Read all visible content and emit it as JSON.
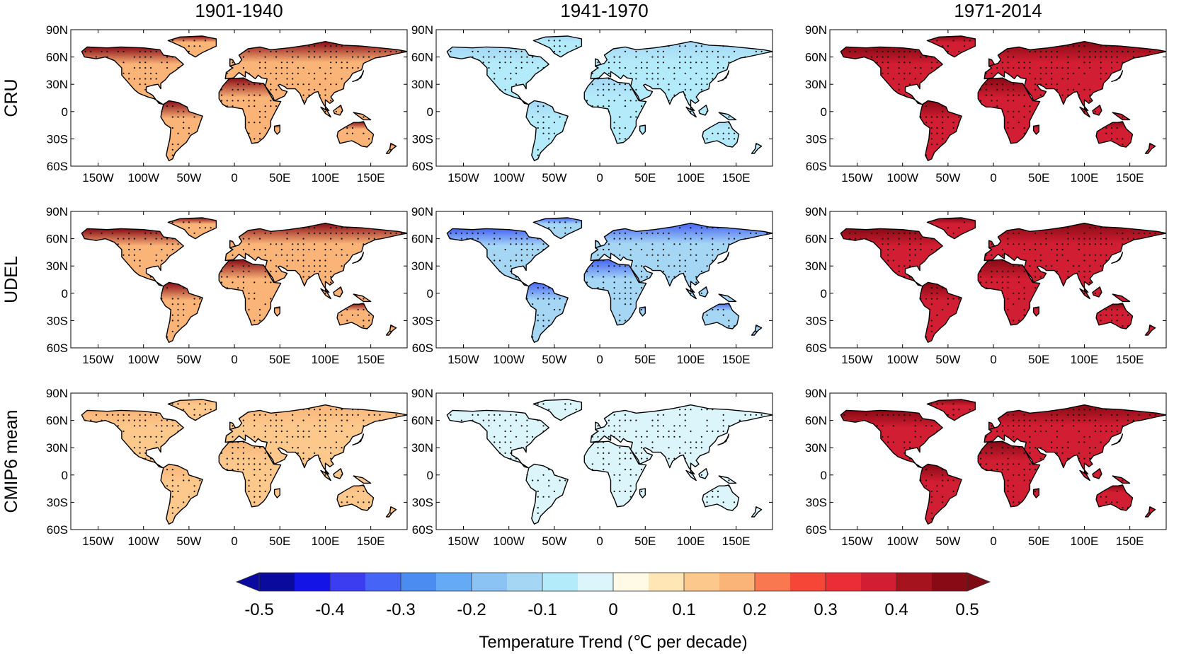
{
  "figure": {
    "column_titles": [
      "1901-1940",
      "1941-1970",
      "1971-2014"
    ],
    "row_labels": [
      "CRU",
      "UDEL",
      "CMIP6 mean"
    ]
  },
  "axes": {
    "lat_ticks": [
      "90N",
      "60N",
      "30N",
      "0",
      "30S",
      "60S"
    ],
    "lat_values": [
      90,
      60,
      30,
      0,
      -30,
      -60
    ],
    "lon_ticks": [
      "150W",
      "100W",
      "50W",
      "0",
      "50E",
      "100E",
      "150E"
    ],
    "lon_values": [
      -150,
      -100,
      -50,
      0,
      50,
      100,
      150
    ],
    "lon_range": [
      -180,
      190
    ],
    "lat_range": [
      -60,
      90
    ]
  },
  "colorbar": {
    "label": "Temperature Trend (℃ per decade)",
    "tick_labels": [
      "-0.5",
      "-0.4",
      "-0.3",
      "-0.2",
      "-0.1",
      "0",
      "0.1",
      "0.2",
      "0.3",
      "0.4",
      "0.5"
    ],
    "range": [
      -0.5,
      0.5
    ],
    "step": 0.05,
    "extend": "both",
    "colors": [
      "#0a0a9c",
      "#1414e6",
      "#3c3cf0",
      "#4664f5",
      "#4b8cf0",
      "#64aaf5",
      "#8cc3f5",
      "#a5d7f5",
      "#b4ebfa",
      "#dcf5fa",
      "#fffae6",
      "#ffe6b4",
      "#fcc88c",
      "#fab478",
      "#fa7850",
      "#f54637",
      "#eb2d37",
      "#d21e32",
      "#a5141e",
      "#870a14"
    ],
    "under_color": "#0a0aa0",
    "over_color": "#7d0a14"
  },
  "chart_data": {
    "type": "heatmap",
    "description_of_panels": "3x3 grid of land-surface temperature trend maps; rows = dataset, columns = period",
    "panels": [
      {
        "row": "CRU",
        "period": "1901-1940",
        "dominant_trend": 0.15,
        "arctic_trend": 0.45,
        "stippled": true
      },
      {
        "row": "CRU",
        "period": "1941-1970",
        "dominant_trend": -0.1,
        "arctic_trend": -0.15,
        "stippled": true
      },
      {
        "row": "CRU",
        "period": "1971-2014",
        "dominant_trend": 0.35,
        "arctic_trend": 0.45,
        "stippled": true
      },
      {
        "row": "UDEL",
        "period": "1901-1940",
        "dominant_trend": 0.15,
        "arctic_trend": 0.45,
        "stippled": true
      },
      {
        "row": "UDEL",
        "period": "1941-1970",
        "dominant_trend": -0.15,
        "arctic_trend": -0.35,
        "stippled": true
      },
      {
        "row": "UDEL",
        "period": "1971-2014",
        "dominant_trend": 0.35,
        "arctic_trend": 0.45,
        "stippled": true
      },
      {
        "row": "CMIP6 mean",
        "period": "1901-1940",
        "dominant_trend": 0.1,
        "arctic_trend": 0.15,
        "stippled": true
      },
      {
        "row": "CMIP6 mean",
        "period": "1941-1970",
        "dominant_trend": -0.05,
        "arctic_trend": -0.05,
        "stippled": true
      },
      {
        "row": "CMIP6 mean",
        "period": "1971-2014",
        "dominant_trend": 0.35,
        "arctic_trend": 0.45,
        "stippled": true
      }
    ]
  }
}
